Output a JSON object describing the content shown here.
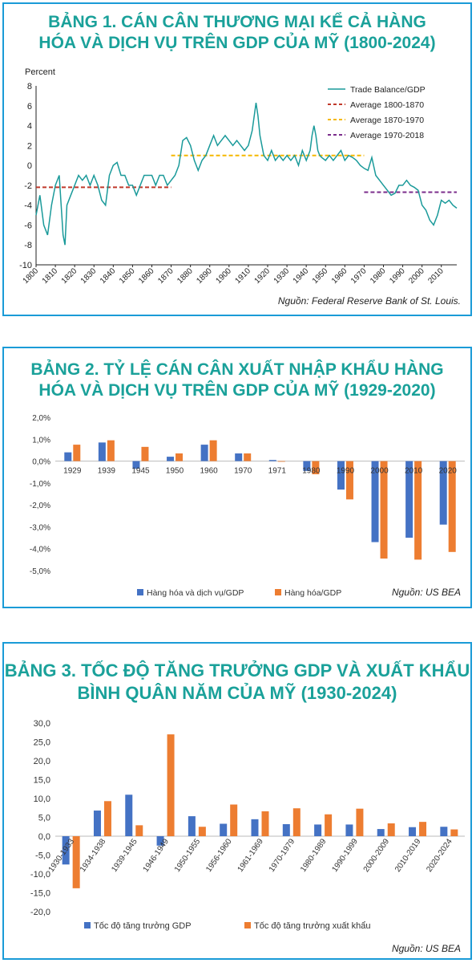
{
  "colors": {
    "teal": "#1aa19a",
    "border": "#1a9bd7",
    "blue": "#4472c4",
    "orange": "#ed7d31",
    "red": "#c0392b",
    "yellow": "#f5b800",
    "purple": "#7b2d8b"
  },
  "chart_data": [
    {
      "type": "line",
      "title_line1": "BẢNG 1. CÁN CÂN THƯƠNG MẠI KỂ CẢ HÀNG",
      "title_line2": "HÓA VÀ DỊCH VỤ TRÊN GDP CỦA MỸ (1800-2024)",
      "ylabel": "Percent",
      "ylim": [
        -10,
        8
      ],
      "yticks": [
        "8",
        "6",
        "4",
        "2",
        "0",
        "-2",
        "-4",
        "-6",
        "-8",
        "-10"
      ],
      "xlim": [
        1800,
        2018
      ],
      "xticks": [
        "1800",
        "1810",
        "1820",
        "1830",
        "1840",
        "1850",
        "1860",
        "1870",
        "1880",
        "1890",
        "1900",
        "1910",
        "1920",
        "1930",
        "1940",
        "1950",
        "1960",
        "1970",
        "1980",
        "1990",
        "2000",
        "2010"
      ],
      "series": [
        {
          "name": "Trade Balance/GDP",
          "type": "line",
          "x": [
            1800,
            1802,
            1804,
            1806,
            1808,
            1810,
            1812,
            1814,
            1815,
            1816,
            1818,
            1820,
            1822,
            1824,
            1826,
            1828,
            1830,
            1832,
            1834,
            1836,
            1838,
            1840,
            1842,
            1844,
            1846,
            1848,
            1850,
            1852,
            1854,
            1856,
            1858,
            1860,
            1862,
            1864,
            1866,
            1868,
            1870,
            1872,
            1874,
            1876,
            1878,
            1880,
            1882,
            1884,
            1886,
            1888,
            1890,
            1892,
            1894,
            1896,
            1898,
            1900,
            1902,
            1904,
            1906,
            1908,
            1910,
            1912,
            1914,
            1915,
            1916,
            1917,
            1918,
            1920,
            1922,
            1924,
            1926,
            1928,
            1930,
            1932,
            1934,
            1936,
            1938,
            1940,
            1942,
            1943,
            1944,
            1945,
            1946,
            1947,
            1948,
            1950,
            1952,
            1954,
            1956,
            1958,
            1960,
            1962,
            1964,
            1966,
            1968,
            1970,
            1972,
            1974,
            1976,
            1978,
            1980,
            1982,
            1984,
            1986,
            1988,
            1990,
            1992,
            1994,
            1996,
            1998,
            2000,
            2002,
            2004,
            2006,
            2008,
            2010,
            2012,
            2014,
            2016,
            2018
          ],
          "values": [
            -5,
            -3,
            -6,
            -7,
            -4,
            -2,
            -1,
            -7,
            -8,
            -4,
            -3,
            -2,
            -1,
            -1.5,
            -1,
            -2,
            -1,
            -2,
            -3.5,
            -4,
            -1,
            0,
            0.3,
            -1,
            -1,
            -2,
            -2,
            -3,
            -2,
            -1,
            -1,
            -1,
            -2,
            -1,
            -1,
            -2,
            -1.5,
            -1,
            0,
            2.5,
            2.8,
            2,
            0.5,
            -0.5,
            0.5,
            1,
            2,
            3,
            2,
            2.5,
            3,
            2.5,
            2,
            2.5,
            2,
            1.5,
            2,
            3.5,
            6.3,
            5,
            3,
            2,
            1,
            0.5,
            1.5,
            0.5,
            1,
            0.5,
            1,
            0.5,
            1,
            0,
            1.5,
            0.5,
            1.5,
            3,
            4,
            3,
            1.5,
            1,
            0.8,
            0.5,
            1,
            0.5,
            1,
            1.5,
            0.5,
            1,
            0.8,
            0.5,
            0,
            -0.3,
            -0.5,
            0.8,
            -1,
            -1.5,
            -2,
            -2.5,
            -3,
            -2.8,
            -2,
            -2,
            -1.5,
            -2,
            -2.2,
            -2.5,
            -4,
            -4.5,
            -5.5,
            -6,
            -5,
            -3.5,
            -3.8,
            -3.5,
            -4,
            -4.3
          ],
          "color": "#1a9a9a"
        },
        {
          "name": "Average 1800-1870",
          "type": "avg",
          "x": [
            1800,
            1870
          ],
          "value": -2.2,
          "color": "#c0392b"
        },
        {
          "name": "Average 1870-1970",
          "type": "avg",
          "x": [
            1870,
            1970
          ],
          "value": 1.0,
          "color": "#f5b800"
        },
        {
          "name": "Average 1970-2018",
          "type": "avg",
          "x": [
            1970,
            2018
          ],
          "value": -2.7,
          "color": "#7b2d8b"
        }
      ],
      "legend_placement": "top-right",
      "source": "Nguồn: Federal Reserve Bank of St. Louis."
    },
    {
      "type": "bar",
      "title_line1": "BẢNG 2. TỶ LỆ CÁN CÂN XUẤT NHẬP KHẨU HÀNG",
      "title_line2": "HÓA VÀ DỊCH VỤ TRÊN GDP CỦA MỸ (1929-2020)",
      "categories": [
        "1929",
        "1939",
        "1945",
        "1950",
        "1960",
        "1970",
        "1971",
        "1980",
        "1990",
        "2000",
        "2010",
        "2020"
      ],
      "ylim": [
        -5,
        2
      ],
      "yticks": [
        "2,0%",
        "1,0%",
        "0,0%",
        "-1,0%",
        "-2,0%",
        "-3,0%",
        "-4,0%",
        "-5,0%"
      ],
      "series": [
        {
          "name": "Hàng hóa và dịch vụ/GDP",
          "color": "#4472c4",
          "values": [
            0.4,
            0.85,
            -0.35,
            0.2,
            0.75,
            0.35,
            0.05,
            -0.45,
            -1.3,
            -3.7,
            -3.5,
            -2.9
          ]
        },
        {
          "name": "Hàng hóa/GDP",
          "color": "#ed7d31",
          "values": [
            0.75,
            0.95,
            0.65,
            0.35,
            0.95,
            0.35,
            0.0,
            -0.6,
            -1.75,
            -4.45,
            -4.5,
            -4.15
          ]
        }
      ],
      "legend_placement": "bottom-left",
      "source": "Nguồn: US BEA"
    },
    {
      "type": "bar",
      "title_line1": "BẢNG 3. TỐC ĐỘ TĂNG TRƯỞNG GDP VÀ XUẤT KHẨU",
      "title_line2": "BÌNH QUÂN NĂM CỦA MỸ (1930-2024)",
      "categories": [
        "1930-1933",
        "1934-1938",
        "1939-1945",
        "1946-1949",
        "1950-1955",
        "1956-1960",
        "1961-1969",
        "1970-1979",
        "1980-1989",
        "1990-1999",
        "2000-2009",
        "2010-2019",
        "2020-2024"
      ],
      "ylim": [
        -20,
        30
      ],
      "yticks": [
        "30,0",
        "25,0",
        "20,0",
        "15,0",
        "10,0",
        "5,0",
        "0,0",
        "-5,0",
        "-10,0",
        "-15,0",
        "-20,0"
      ],
      "series": [
        {
          "name": "Tốc độ tăng trưởng GDP",
          "color": "#4472c4",
          "values": [
            -7.5,
            6.8,
            11,
            -2.5,
            5.3,
            3.3,
            4.5,
            3.2,
            3.1,
            3.1,
            1.9,
            2.4,
            2.5
          ]
        },
        {
          "name": "Tốc độ tăng trưởng xuất khẩu",
          "color": "#ed7d31",
          "values": [
            -13.8,
            9.3,
            2.9,
            27,
            2.5,
            8.4,
            6.6,
            7.4,
            5.8,
            7.3,
            3.4,
            3.8,
            1.8
          ]
        }
      ],
      "legend_placement": "bottom-left",
      "source": "Nguồn: US BEA"
    }
  ]
}
